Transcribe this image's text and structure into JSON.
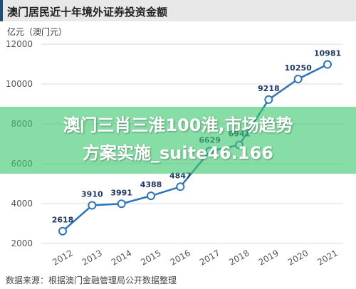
{
  "title": "澳门居民近十年境外证券投资金额",
  "unit_label": "亿元（澳门元）",
  "source": "数据来源：根据澳门金融管理局公开数据整理",
  "overlay": {
    "line1": "澳门三肖三淮100淮,市场趋势",
    "line2": "方案实施_suite46.166"
  },
  "chart_data": {
    "type": "line",
    "title": "澳门居民近十年境外证券投资金额",
    "ylabel": "亿元（澳门元）",
    "xlabel": "",
    "x": [
      "2012",
      "2013",
      "2014",
      "2015",
      "2016",
      "2017",
      "2018",
      "2019",
      "2020",
      "2021"
    ],
    "values": [
      2618,
      3910,
      3991,
      4388,
      4847,
      6629,
      6941,
      9218,
      10250,
      10981
    ],
    "labels": [
      "2618",
      "3910",
      "3991",
      "4388",
      "4847",
      "6629",
      "6941",
      "9218",
      "10250",
      "10981"
    ],
    "ylim": [
      2000,
      12000
    ],
    "yticks": [
      2000,
      4000,
      6000,
      8000,
      10000,
      12000
    ],
    "grid": true,
    "colors": {
      "line": "#2e75b6",
      "label": "#1f3864",
      "grid": "#d9d9d9",
      "overlay": "#3cc86e"
    }
  }
}
